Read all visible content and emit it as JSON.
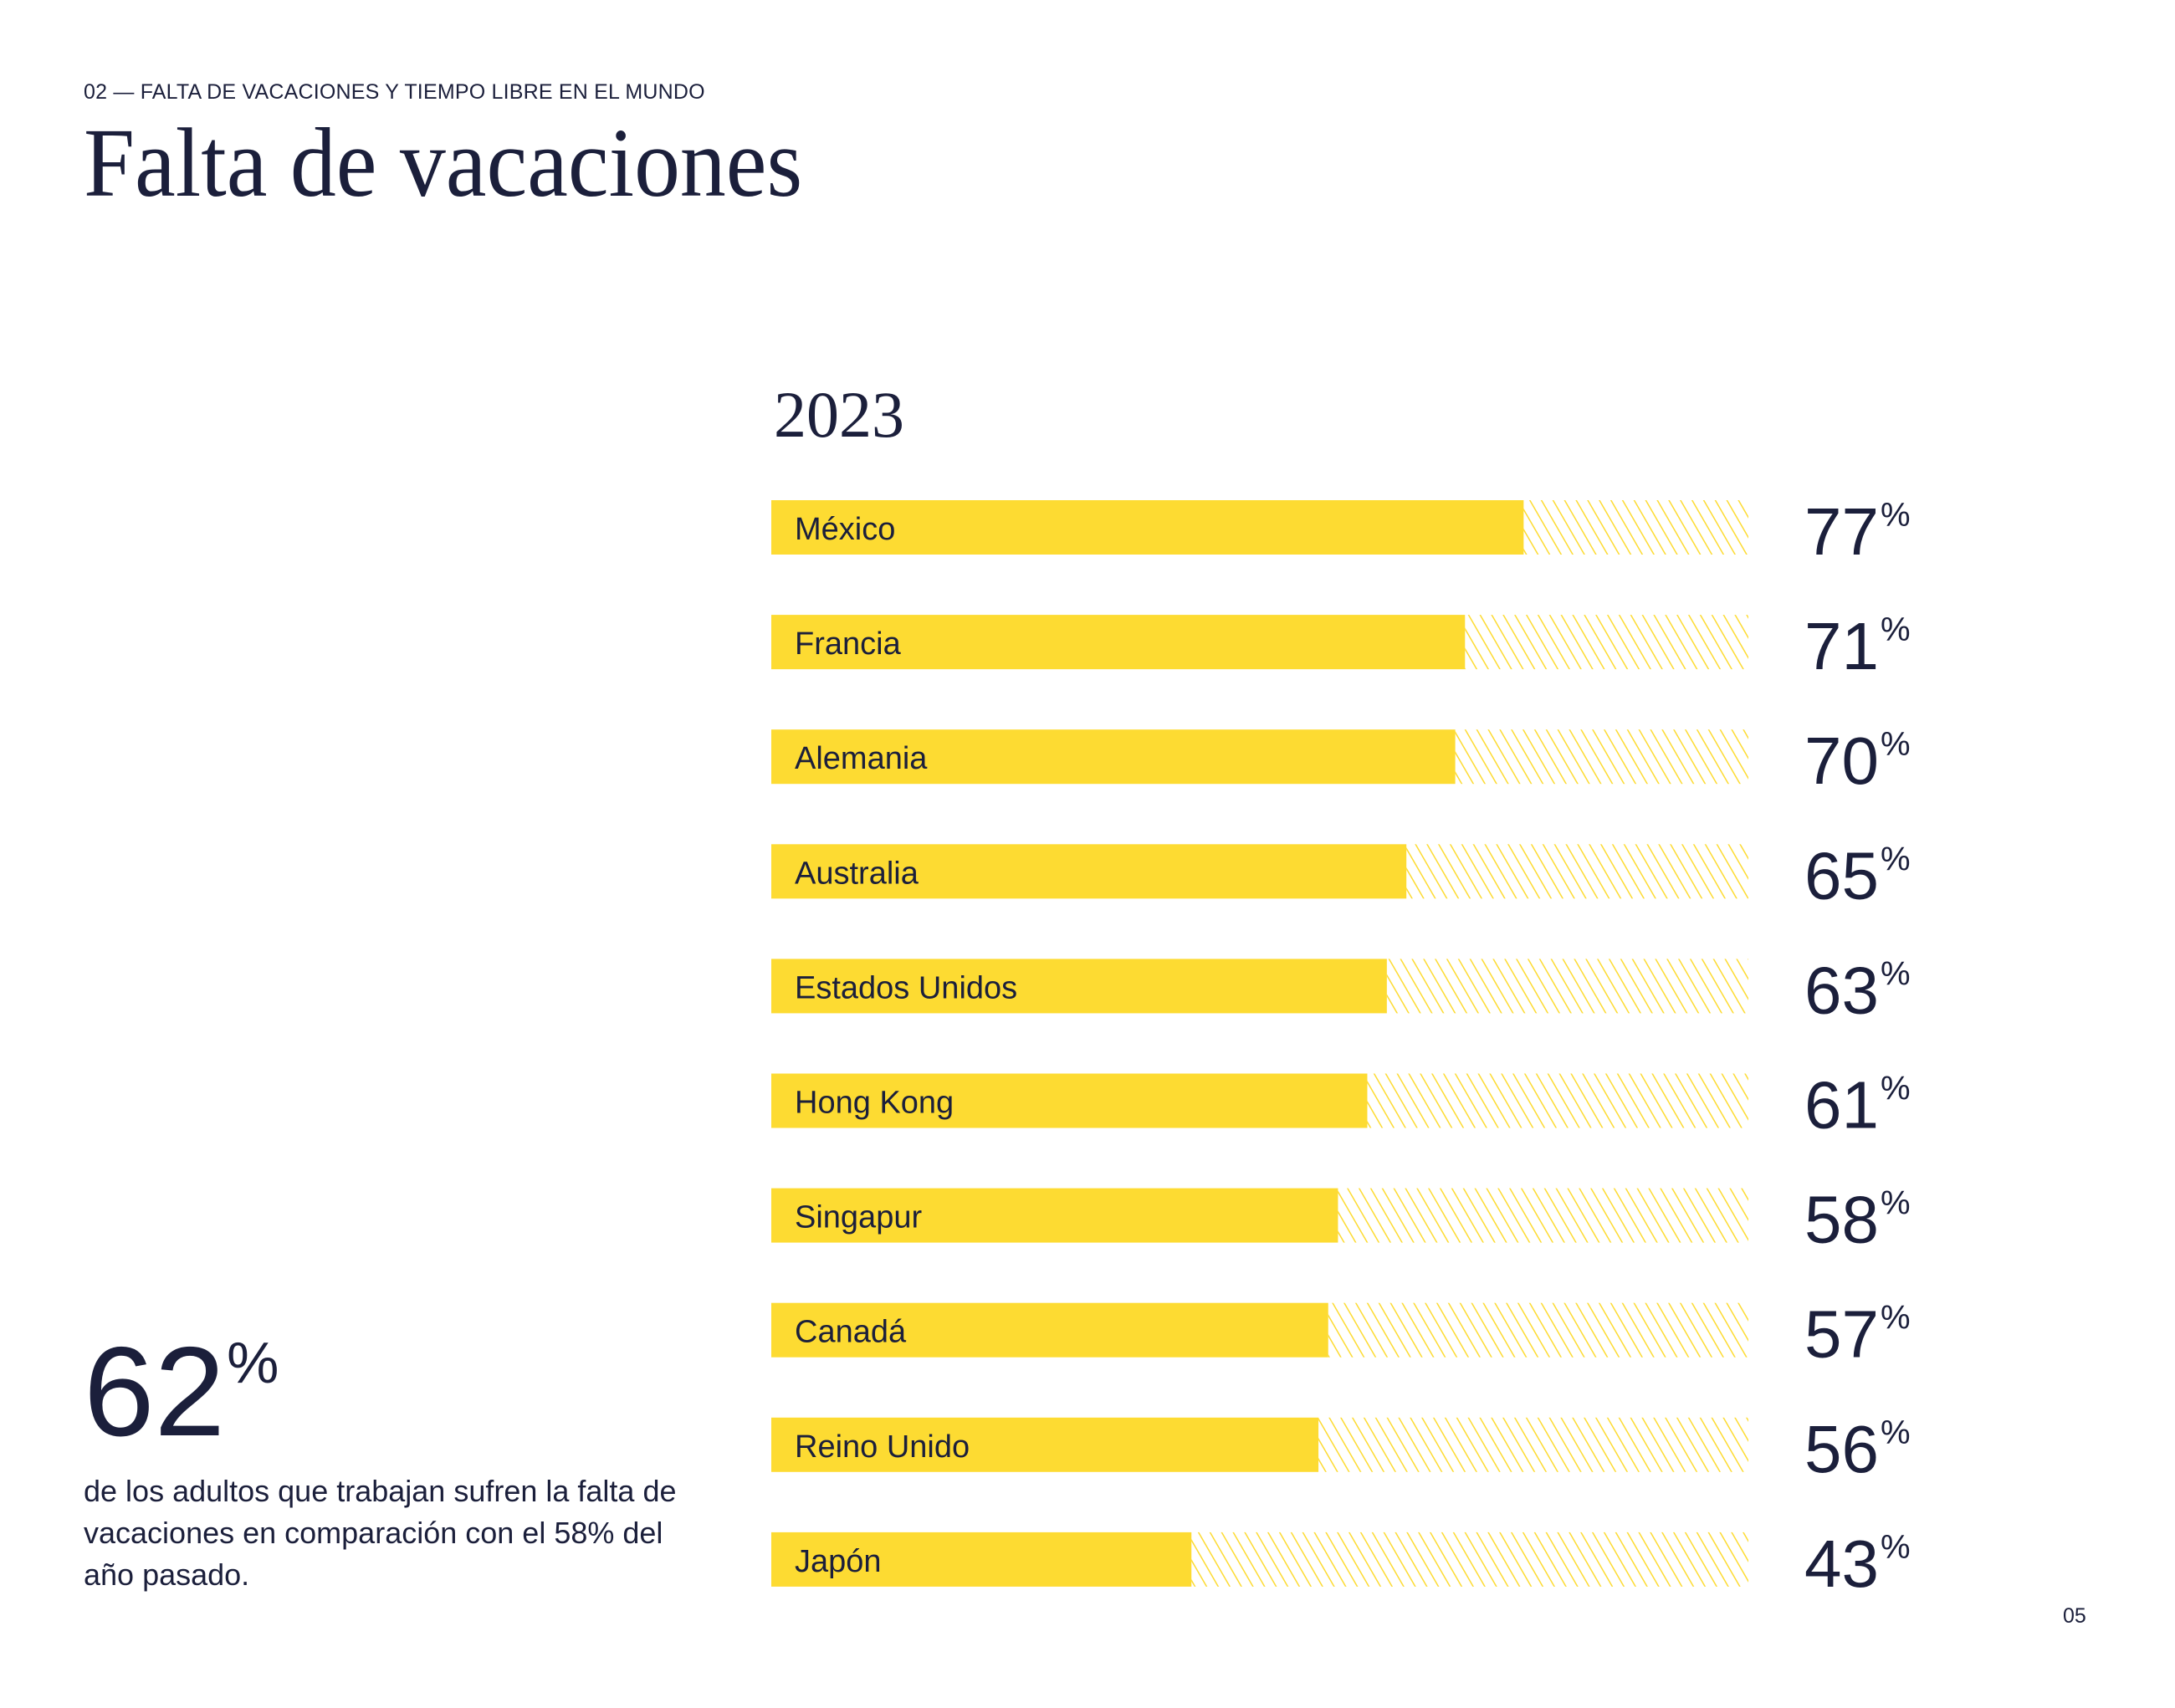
{
  "header": {
    "eyebrow": "02 — FALTA DE VACACIONES Y TIEMPO LIBRE EN EL MUNDO",
    "title": "Falta de vacaciones"
  },
  "highlight": {
    "value": "62",
    "unit": "%",
    "description": "de los adultos que trabajan sufren la falta de vacaciones en comparación con el 58% del año pasado."
  },
  "page_number": "05",
  "colors": {
    "bar_fill": "#FDDB32",
    "text": "#1b1f3b",
    "background": "#ffffff"
  },
  "chart_data": {
    "type": "bar",
    "orientation": "horizontal",
    "title": "2023",
    "xlabel": "",
    "ylabel": "",
    "xlim": [
      0,
      100
    ],
    "unit": "%",
    "grid": false,
    "remainder_style": "hatched",
    "categories": [
      "México",
      "Francia",
      "Alemania",
      "Australia",
      "Estados Unidos",
      "Hong Kong",
      "Singapur",
      "Canadá",
      "Reino Unido",
      "Japón"
    ],
    "values": [
      77,
      71,
      70,
      65,
      63,
      61,
      58,
      57,
      56,
      43
    ],
    "data_labels": [
      "77",
      "71",
      "70",
      "65",
      "63",
      "61",
      "58",
      "57",
      "56",
      "43"
    ]
  }
}
